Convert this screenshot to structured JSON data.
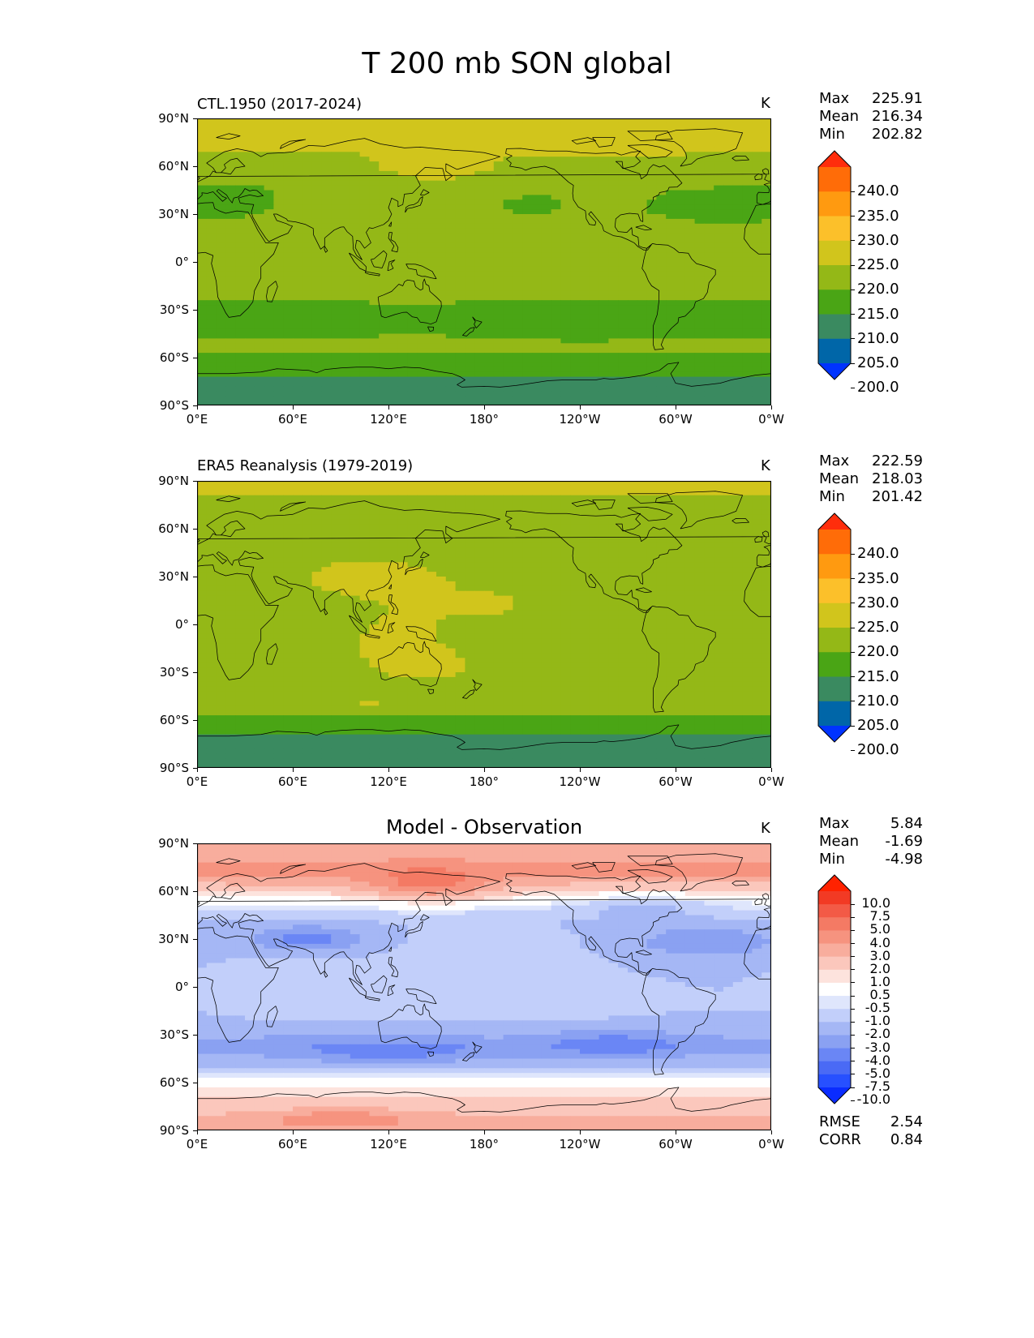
{
  "figure": {
    "title": "T 200 mb SON global"
  },
  "panels": [
    {
      "title": "CTL.1950 (2017-2024)",
      "units": "K",
      "stats": [
        {
          "label": "Max",
          "value": "225.91"
        },
        {
          "label": "Mean",
          "value": "216.34"
        },
        {
          "label": "Min",
          "value": "202.82"
        }
      ],
      "colorbar": {
        "ticks": [
          "240.0",
          "235.0",
          "230.0",
          "225.0",
          "220.0",
          "215.0",
          "210.0",
          "205.0",
          "200.0"
        ]
      }
    },
    {
      "title": "ERA5 Reanalysis (1979-2019)",
      "units": "K",
      "stats": [
        {
          "label": "Max",
          "value": "222.59"
        },
        {
          "label": "Mean",
          "value": "218.03"
        },
        {
          "label": "Min",
          "value": "201.42"
        }
      ],
      "colorbar": {
        "ticks": [
          "240.0",
          "235.0",
          "230.0",
          "225.0",
          "220.0",
          "215.0",
          "210.0",
          "205.0",
          "200.0"
        ]
      }
    },
    {
      "title": "Model - Observation",
      "units": "K",
      "stats": [
        {
          "label": "Max",
          "value": "5.84"
        },
        {
          "label": "Mean",
          "value": "-1.69"
        },
        {
          "label": "Min",
          "value": "-4.98"
        }
      ],
      "colorbar": {
        "ticks": [
          "10.0",
          "7.5",
          "5.0",
          "4.0",
          "3.0",
          "2.0",
          "1.0",
          "0.5",
          "-0.5",
          "-1.0",
          "-2.0",
          "-3.0",
          "-4.0",
          "-5.0",
          "-7.5",
          "-10.0"
        ]
      },
      "metrics": [
        {
          "label": "RMSE",
          "value": "2.54"
        },
        {
          "label": "CORR",
          "value": "0.84"
        }
      ]
    }
  ],
  "axes": {
    "xticks": [
      "0°E",
      "60°E",
      "120°E",
      "180°",
      "120°W",
      "60°W",
      "0°W"
    ],
    "yticks": [
      "90°N",
      "60°N",
      "30°N",
      "0°",
      "30°S",
      "60°S",
      "90°S"
    ]
  },
  "chart_data": [
    {
      "type": "heatmap",
      "title": "CTL.1950 (2017-2024)",
      "variable": "T 200 mb SON",
      "units": "K",
      "x_range": [
        0,
        360
      ],
      "y_range": [
        -90,
        90
      ],
      "levels": [
        200,
        205,
        210,
        215,
        220,
        225,
        230,
        235,
        240
      ],
      "colors": [
        "#0033ff",
        "#0066a8",
        "#3a8a60",
        "#4aa515",
        "#94b817",
        "#d1c51c",
        "#fcc02a",
        "#ff9a10",
        "#ff6c08",
        "#ff2d0c"
      ],
      "zonal_pattern": [
        {
          "lat": 85,
          "value": 221
        },
        {
          "lat": 75,
          "value": 221.5
        },
        {
          "lat": 62,
          "value": 218
        },
        {
          "lat": 45,
          "value": 216
        },
        {
          "lat": 30,
          "value": 216
        },
        {
          "lat": 15,
          "value": 217
        },
        {
          "lat": 0,
          "value": 217
        },
        {
          "lat": -15,
          "value": 217
        },
        {
          "lat": -30,
          "value": 214.5
        },
        {
          "lat": -45,
          "value": 215
        },
        {
          "lat": -55,
          "value": 216
        },
        {
          "lat": -67,
          "value": 212
        },
        {
          "lat": -80,
          "value": 208
        }
      ]
    },
    {
      "type": "heatmap",
      "title": "ERA5 Reanalysis (1979-2019)",
      "variable": "T 200 mb SON",
      "units": "K",
      "x_range": [
        0,
        360
      ],
      "y_range": [
        -90,
        90
      ],
      "levels": [
        200,
        205,
        210,
        215,
        220,
        225,
        230,
        235,
        240
      ],
      "colors": [
        "#0033ff",
        "#0066a8",
        "#3a8a60",
        "#4aa515",
        "#94b817",
        "#d1c51c",
        "#fcc02a",
        "#ff9a10",
        "#ff6c08",
        "#ff2d0c"
      ],
      "zonal_pattern": [
        {
          "lat": 85,
          "value": 220.5
        },
        {
          "lat": 70,
          "value": 218
        },
        {
          "lat": 55,
          "value": 217
        },
        {
          "lat": 30,
          "value": 219
        },
        {
          "lat": 0,
          "value": 218
        },
        {
          "lat": -30,
          "value": 218.5
        },
        {
          "lat": -50,
          "value": 217
        },
        {
          "lat": -62,
          "value": 213
        },
        {
          "lat": -75,
          "value": 208
        },
        {
          "lat": -85,
          "value": 207
        }
      ]
    },
    {
      "type": "heatmap",
      "title": "Model - Observation",
      "variable": "T 200 mb SON difference",
      "units": "K",
      "x_range": [
        0,
        360
      ],
      "y_range": [
        -90,
        90
      ],
      "levels": [
        -10,
        -7.5,
        -5,
        -4,
        -3,
        -2,
        -1,
        -0.5,
        0.5,
        1,
        2,
        3,
        4,
        5,
        7.5,
        10
      ],
      "colors": [
        "#0a2cff",
        "#2750ff",
        "#4a6af5",
        "#6a86f5",
        "#8aa1f2",
        "#a5b7f5",
        "#c2cffa",
        "#dfe6fc",
        "#ffffff",
        "#fde3dd",
        "#fbc7bc",
        "#f8ad9d",
        "#f6937f",
        "#f47a64",
        "#f35a46",
        "#f23a24",
        "#ff2200"
      ],
      "zonal_pattern": [
        {
          "lat": 85,
          "value": 2.5
        },
        {
          "lat": 72,
          "value": 3.5
        },
        {
          "lat": 62,
          "value": 1.5
        },
        {
          "lat": 52,
          "value": -0.5
        },
        {
          "lat": 40,
          "value": -2
        },
        {
          "lat": 20,
          "value": -2
        },
        {
          "lat": 0,
          "value": -2
        },
        {
          "lat": -20,
          "value": -2
        },
        {
          "lat": -38,
          "value": -3.5
        },
        {
          "lat": -50,
          "value": -2
        },
        {
          "lat": -58,
          "value": 0
        },
        {
          "lat": -70,
          "value": 1
        },
        {
          "lat": -85,
          "value": 2.5
        }
      ],
      "rmse": 2.54,
      "corr": 0.84
    }
  ]
}
